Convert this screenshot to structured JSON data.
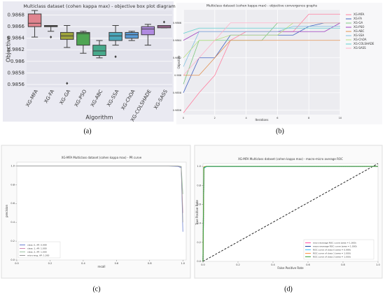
{
  "chart_data": [
    {
      "type": "box",
      "caption": "(a)",
      "title": "Multiclass dataset (cohen kappa max) - objective box plot diagram",
      "x_label": "Algorithm",
      "y_label": "Objective",
      "categories": [
        "XG-MFA",
        "XG-FA",
        "XG-GA",
        "XG-PSO",
        "XG-ABC",
        "XG-SSA",
        "XG-ChOA",
        "XG-COLSHADE",
        "XG-SASS"
      ],
      "colors": [
        "#e0848f",
        "#c4a55f",
        "#9ea43c",
        "#4fa553",
        "#47aa8c",
        "#4aa6b9",
        "#5a9bd6",
        "#b08ae0",
        "#e084c9"
      ],
      "boxes": [
        {
          "min": 0.98642,
          "q1": 0.9866,
          "median": 0.98666,
          "q3": 0.98682,
          "max": 0.98688,
          "outliers": []
        },
        {
          "min": 0.98652,
          "q1": 0.9866,
          "median": 0.98661,
          "q3": 0.98662,
          "max": 0.98662,
          "outliers": [
            0.98642
          ]
        },
        {
          "min": 0.98624,
          "q1": 0.98638,
          "median": 0.98644,
          "q3": 0.9865,
          "max": 0.98662,
          "outliers": [
            0.98562
          ]
        },
        {
          "min": 0.98614,
          "q1": 0.98628,
          "median": 0.98648,
          "q3": 0.9865,
          "max": 0.98652,
          "outliers": []
        },
        {
          "min": 0.98606,
          "q1": 0.9861,
          "median": 0.98618,
          "q3": 0.98628,
          "max": 0.98636,
          "outliers": []
        },
        {
          "min": 0.98628,
          "q1": 0.98636,
          "median": 0.98644,
          "q3": 0.9865,
          "max": 0.98662,
          "outliers": [
            0.98608
          ]
        },
        {
          "min": 0.98636,
          "q1": 0.9864,
          "median": 0.98646,
          "q3": 0.9865,
          "max": 0.98652,
          "outliers": []
        },
        {
          "min": 0.98628,
          "q1": 0.98646,
          "median": 0.98656,
          "q3": 0.9866,
          "max": 0.98664,
          "outliers": []
        },
        {
          "min": 0.98658,
          "q1": 0.98658,
          "median": 0.9866,
          "q3": 0.98662,
          "max": 0.98662,
          "outliers": [
            0.98668
          ]
        }
      ],
      "ylim": [
        0.98555,
        0.98688
      ],
      "yticks": [
        0.9856,
        0.9858,
        0.986,
        0.9862,
        0.9864,
        0.9866,
        0.9868
      ],
      "grid": true
    },
    {
      "type": "line",
      "caption": "(b)",
      "title": "Multiclass dataset (cohen kappa max) - objective convergence graphs",
      "x_label": "Iterations",
      "y_label": "Objective",
      "legend": "right",
      "x": [
        0,
        1,
        2,
        3,
        4,
        5,
        6,
        7,
        8,
        9,
        10
      ],
      "series": [
        {
          "name": "XG-MFA",
          "color": "#ff7f9f",
          "values": [
            0.98557,
            0.9858,
            0.986,
            0.9864,
            0.9865,
            0.9865,
            0.9865,
            0.9865,
            0.9867,
            0.9867,
            0.9867
          ]
        },
        {
          "name": "XG-FA",
          "color": "#4060c0",
          "values": [
            0.9858,
            0.9862,
            0.9862,
            0.98646,
            0.98646,
            0.98646,
            0.98646,
            0.98646,
            0.98656,
            0.9866,
            0.9866
          ]
        },
        {
          "name": "XG-GA",
          "color": "#7ec87e",
          "values": [
            0.9859,
            0.9864,
            0.9864,
            0.9864,
            0.9864,
            0.9864,
            0.9866,
            0.9866,
            0.9866,
            0.9866,
            0.9866
          ]
        },
        {
          "name": "XG-PSO",
          "color": "#a040c0",
          "values": [
            0.9864,
            0.9865,
            0.9865,
            0.9865,
            0.9865,
            0.9865,
            0.9865,
            0.9865,
            0.9865,
            0.9865,
            0.9866
          ]
        },
        {
          "name": "XG-ABC",
          "color": "#e09050",
          "values": [
            0.986,
            0.986,
            0.9862,
            0.9864,
            0.9864,
            0.9864,
            0.9864,
            0.9864,
            0.9864,
            0.9864,
            0.9864
          ]
        },
        {
          "name": "XG-SSA",
          "color": "#80c0e0",
          "values": [
            0.9861,
            0.9865,
            0.9865,
            0.9865,
            0.9865,
            0.9865,
            0.9865,
            0.98656,
            0.98656,
            0.98656,
            0.98656
          ]
        },
        {
          "name": "XG-ChOA",
          "color": "#b8e080",
          "values": [
            0.9862,
            0.9864,
            0.9864,
            0.98646,
            0.98646,
            0.98646,
            0.98646,
            0.9866,
            0.9866,
            0.9866,
            0.9866
          ]
        },
        {
          "name": "XG-COLSHADE",
          "color": "#60d0d0",
          "values": [
            0.98648,
            0.98654,
            0.98654,
            0.98654,
            0.98654,
            0.98654,
            0.98654,
            0.98654,
            0.98654,
            0.98654,
            0.98654
          ]
        },
        {
          "name": "XG-SASS",
          "color": "#ffb0c8",
          "values": [
            0.986,
            0.9862,
            0.9864,
            0.9866,
            0.9866,
            0.9866,
            0.9866,
            0.9866,
            0.9866,
            0.9866,
            0.9866
          ]
        }
      ],
      "xlim": [
        0,
        10
      ],
      "xticks": [
        0,
        2,
        4,
        6,
        8,
        10
      ],
      "ylim": [
        0.98555,
        0.98675
      ],
      "yticks": [
        0.9856,
        0.9858,
        0.986,
        0.9862,
        0.9864,
        0.9866
      ],
      "grid": true
    },
    {
      "type": "line",
      "caption": "(c)",
      "title": "XG-MFA Multiclass dataset (cohen kappa max) - PR curve",
      "x_label": "recall",
      "y_label": "precision",
      "legend": "lower left",
      "x": [
        0,
        0.5,
        0.9,
        0.97,
        0.99,
        1.0
      ],
      "series": [
        {
          "name": "class: 0, AP: 0.999",
          "color": "#6a7fd0",
          "values": [
            1,
            1,
            0.999,
            0.995,
            0.98,
            0.3
          ]
        },
        {
          "name": "class: 1, AP: 1.000",
          "color": "#d08ab0",
          "values": [
            1,
            1,
            1,
            0.998,
            0.99,
            0.5
          ]
        },
        {
          "name": "class: 2, AP: 1.000",
          "color": "#9ac0a0",
          "values": [
            1,
            1,
            1,
            0.999,
            0.995,
            0.7
          ]
        },
        {
          "name": "micro-avg, AP: 1.000",
          "color": "#999999",
          "values": [
            1,
            1,
            1,
            0.999,
            0.99,
            0.4
          ]
        }
      ],
      "xlim": [
        0,
        1.02
      ],
      "xticks": [
        {
          "value": 0,
          "label": "0.0"
        },
        0.2,
        0.4,
        0.6,
        0.8,
        {
          "value": 1,
          "label": "1.0"
        }
      ],
      "ylim": [
        0,
        1.04
      ],
      "yticks": [
        {
          "value": 0,
          "label": "0.0"
        },
        0.2,
        0.4,
        0.6,
        0.8,
        {
          "value": 1,
          "label": "1.0"
        }
      ],
      "grid": false
    },
    {
      "type": "line",
      "caption": "(d)",
      "title": "XG-MFA Multiclass dataset (cohen kappa max) - macro-micro average ROC",
      "x_label": "False Positive Rate",
      "y_label": "True Positive Rate",
      "legend": "lower right",
      "diagonal": true,
      "x": [
        0,
        0.005,
        0.02,
        1.0
      ],
      "series": [
        {
          "name": "micro-average ROC curve (area = 1.000)",
          "color": "#ff4da6",
          "values": [
            0,
            0.99,
            1,
            1
          ]
        },
        {
          "name": "macro-average ROC curve (area = 1.000)",
          "color": "#2040a0",
          "values": [
            0,
            0.985,
            1,
            1
          ]
        },
        {
          "name": "ROC curve of class 0 (area = 0.999)",
          "color": "#40c0ff",
          "values": [
            0,
            0.98,
            0.998,
            1
          ]
        },
        {
          "name": "ROC curve of class 1 (area = 1.000)",
          "color": "#ff9040",
          "values": [
            0,
            0.995,
            1,
            1
          ]
        },
        {
          "name": "ROC curve of class 2 (area = 1.000)",
          "color": "#40a040",
          "values": [
            0,
            0.99,
            1,
            1
          ]
        }
      ],
      "xlim": [
        0,
        1
      ],
      "xticks": [
        {
          "value": 0,
          "label": "0.0"
        },
        0.2,
        0.4,
        0.6,
        0.8,
        {
          "value": 1,
          "label": "1.0"
        }
      ],
      "ylim": [
        0,
        1.03
      ],
      "yticks": [
        {
          "value": 0,
          "label": "0.0"
        },
        0.2,
        0.4,
        0.6,
        0.8,
        {
          "value": 1,
          "label": "1.0"
        }
      ],
      "grid": false
    }
  ]
}
